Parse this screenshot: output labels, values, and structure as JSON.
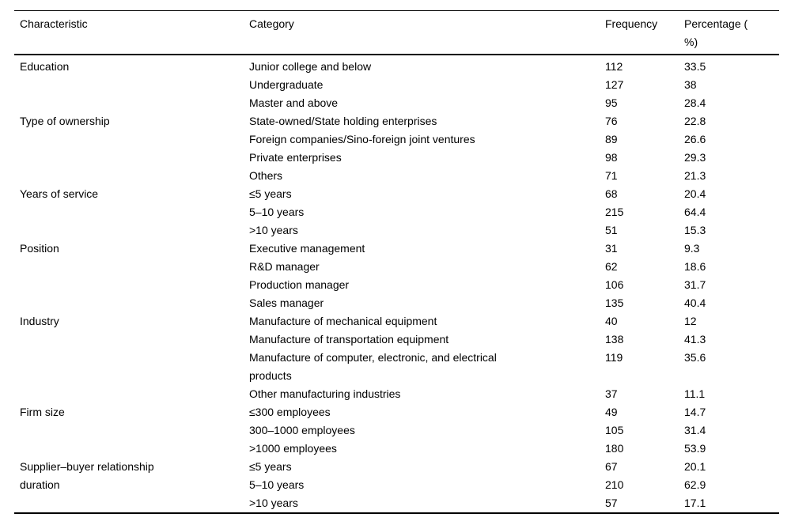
{
  "page": {
    "background_color": "#ffffff",
    "text_color": "#000000",
    "rule_color": "#000000"
  },
  "table": {
    "header": {
      "characteristic": "Characteristic",
      "category": "Category",
      "frequency": "Frequency",
      "percentage_line1": "Percentage (",
      "percentage_line2": "%)"
    },
    "groups": [
      {
        "characteristic": "Education",
        "rows": [
          {
            "category": "Junior college and below",
            "frequency": "112",
            "percentage": "33.5"
          },
          {
            "category": "Undergraduate",
            "frequency": "127",
            "percentage": "38"
          },
          {
            "category": "Master and above",
            "frequency": "95",
            "percentage": "28.4"
          }
        ]
      },
      {
        "characteristic": "Type of ownership",
        "rows": [
          {
            "category": "State-owned/State holding enterprises",
            "frequency": "76",
            "percentage": "22.8"
          },
          {
            "category": "Foreign companies/Sino-foreign joint ventures",
            "frequency": "89",
            "percentage": "26.6"
          },
          {
            "category": "Private enterprises",
            "frequency": "98",
            "percentage": "29.3"
          },
          {
            "category": "Others",
            "frequency": "71",
            "percentage": "21.3"
          }
        ]
      },
      {
        "characteristic": "Years of service",
        "rows": [
          {
            "category": "≤5 years",
            "frequency": "68",
            "percentage": "20.4"
          },
          {
            "category": "5–10 years",
            "frequency": "215",
            "percentage": "64.4"
          },
          {
            "category": ">10 years",
            "frequency": "51",
            "percentage": "15.3"
          }
        ]
      },
      {
        "characteristic": "Position",
        "rows": [
          {
            "category": "Executive management",
            "frequency": "31",
            "percentage": "9.3"
          },
          {
            "category": "R&D manager",
            "frequency": "62",
            "percentage": "18.6"
          },
          {
            "category": "Production manager",
            "frequency": "106",
            "percentage": "31.7"
          },
          {
            "category": "Sales manager",
            "frequency": "135",
            "percentage": "40.4"
          }
        ]
      },
      {
        "characteristic": "Industry",
        "rows": [
          {
            "category": "Manufacture of mechanical equipment",
            "frequency": "40",
            "percentage": "12"
          },
          {
            "category": "Manufacture of transportation equipment",
            "frequency": "138",
            "percentage": "41.3"
          },
          {
            "category": "Manufacture of computer, electronic, and electrical products",
            "frequency": "119",
            "percentage": "35.6"
          },
          {
            "category": "Other manufacturing industries",
            "frequency": "37",
            "percentage": "11.1"
          }
        ]
      },
      {
        "characteristic": "Firm size",
        "rows": [
          {
            "category": "≤300 employees",
            "frequency": "49",
            "percentage": "14.7"
          },
          {
            "category": "300–1000 employees",
            "frequency": "105",
            "percentage": "31.4"
          },
          {
            "category": ">1000 employees",
            "frequency": "180",
            "percentage": "53.9"
          }
        ]
      },
      {
        "characteristic": "Supplier–buyer relationship duration",
        "rows": [
          {
            "category": "≤5 years",
            "frequency": "67",
            "percentage": "20.1"
          },
          {
            "category": "5–10 years",
            "frequency": "210",
            "percentage": "62.9"
          },
          {
            "category": ">10 years",
            "frequency": "57",
            "percentage": "17.1"
          }
        ]
      }
    ]
  }
}
